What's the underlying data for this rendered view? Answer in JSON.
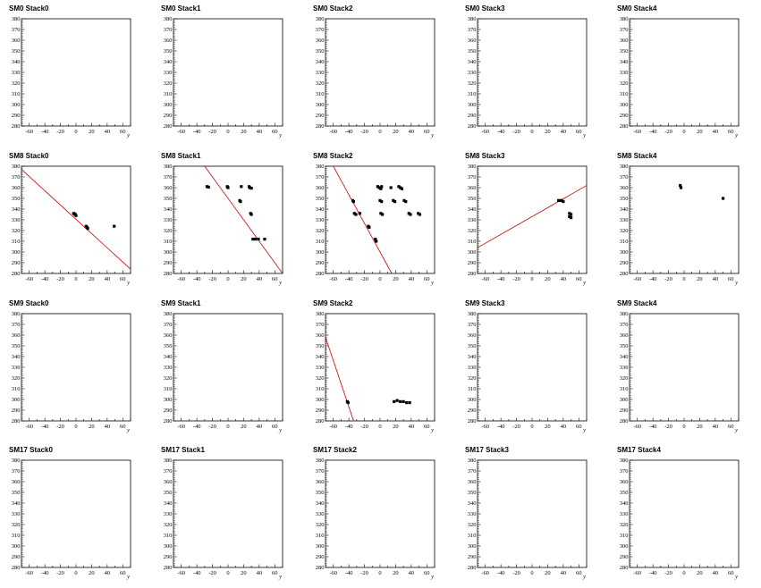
{
  "chart_data": {
    "type": "scatter",
    "xlabel": "y",
    "xlim": [
      -70,
      70
    ],
    "ylim": [
      280,
      380
    ],
    "xticks": [
      -60,
      -40,
      -20,
      0,
      20,
      40,
      60
    ],
    "yticks": [
      280,
      290,
      300,
      310,
      320,
      330,
      340,
      350,
      360,
      370,
      380
    ],
    "marker_color": "#000000",
    "fit_line_color": "#cc0000",
    "panels": [
      {
        "title": "SM0 Stack0",
        "points": [],
        "fit": null
      },
      {
        "title": "SM0 Stack1",
        "points": [],
        "fit": null
      },
      {
        "title": "SM0 Stack2",
        "points": [],
        "fit": null
      },
      {
        "title": "SM0 Stack3",
        "points": [],
        "fit": null
      },
      {
        "title": "SM0 Stack4",
        "points": [],
        "fit": null
      },
      {
        "title": "SM8 Stack0",
        "points": [
          [
            -3,
            336
          ],
          [
            -2,
            335.5
          ],
          [
            -1,
            335
          ],
          [
            0,
            334
          ],
          [
            13,
            324
          ],
          [
            14,
            323
          ],
          [
            15,
            322
          ],
          [
            49,
            324
          ]
        ],
        "fit": [
          [
            -70,
            377
          ],
          [
            70,
            284
          ]
        ]
      },
      {
        "title": "SM8 Stack1",
        "points": [
          [
            -27,
            361
          ],
          [
            -25,
            360.5
          ],
          [
            -1,
            361
          ],
          [
            0,
            360
          ],
          [
            17,
            361
          ],
          [
            27,
            361
          ],
          [
            28,
            360
          ],
          [
            30,
            359.5
          ],
          [
            15,
            348
          ],
          [
            16,
            347
          ],
          [
            29,
            336
          ],
          [
            30,
            335
          ],
          [
            32,
            312
          ],
          [
            35,
            312
          ],
          [
            39,
            312
          ],
          [
            47,
            312
          ]
        ],
        "fit": [
          [
            -30,
            380
          ],
          [
            70,
            280
          ]
        ]
      },
      {
        "title": "SM8 Stack2",
        "points": [
          [
            -3,
            361
          ],
          [
            -1,
            360
          ],
          [
            1,
            359
          ],
          [
            2,
            361
          ],
          [
            14,
            360
          ],
          [
            24,
            361
          ],
          [
            26,
            360
          ],
          [
            28,
            359
          ],
          [
            0,
            348
          ],
          [
            2,
            347
          ],
          [
            17,
            348
          ],
          [
            19,
            347
          ],
          [
            31,
            348
          ],
          [
            33,
            347
          ],
          [
            -35,
            348
          ],
          [
            -34,
            347
          ],
          [
            -33,
            336
          ],
          [
            -31,
            335
          ],
          [
            -26,
            336
          ],
          [
            1,
            336
          ],
          [
            3,
            335
          ],
          [
            37,
            336
          ],
          [
            39,
            335
          ],
          [
            49,
            336
          ],
          [
            51,
            335
          ],
          [
            -15,
            324
          ],
          [
            -14,
            323
          ],
          [
            -6,
            312
          ],
          [
            -5,
            310
          ]
        ],
        "fit": [
          [
            -60,
            380
          ],
          [
            15,
            280
          ]
        ]
      },
      {
        "title": "SM8 Stack3",
        "points": [
          [
            34,
            348
          ],
          [
            36,
            348
          ],
          [
            38,
            348
          ],
          [
            40,
            347
          ],
          [
            48,
            336
          ],
          [
            50,
            335
          ],
          [
            48,
            333
          ],
          [
            50,
            332
          ]
        ],
        "fit": [
          [
            -70,
            304
          ],
          [
            70,
            362
          ]
        ]
      },
      {
        "title": "SM8 Stack4",
        "points": [
          [
            -5,
            362
          ],
          [
            -4,
            360
          ],
          [
            50,
            350
          ]
        ],
        "fit": null
      },
      {
        "title": "SM9 Stack0",
        "points": [],
        "fit": null
      },
      {
        "title": "SM9 Stack1",
        "points": [],
        "fit": null
      },
      {
        "title": "SM9 Stack2",
        "points": [
          [
            -42,
            298
          ],
          [
            -41,
            297
          ],
          [
            18,
            298
          ],
          [
            22,
            299
          ],
          [
            26,
            298
          ],
          [
            30,
            298
          ],
          [
            34,
            297
          ],
          [
            38,
            297
          ]
        ],
        "fit": [
          [
            -70,
            358
          ],
          [
            -34,
            280
          ]
        ]
      },
      {
        "title": "SM9 Stack3",
        "points": [],
        "fit": null
      },
      {
        "title": "SM9 Stack4",
        "points": [],
        "fit": null
      },
      {
        "title": "SM17 Stack0",
        "points": [],
        "fit": null
      },
      {
        "title": "SM17 Stack1",
        "points": [],
        "fit": null
      },
      {
        "title": "SM17 Stack2",
        "points": [],
        "fit": null
      },
      {
        "title": "SM17 Stack3",
        "points": [],
        "fit": null
      },
      {
        "title": "SM17 Stack4",
        "points": [],
        "fit": null
      }
    ]
  }
}
